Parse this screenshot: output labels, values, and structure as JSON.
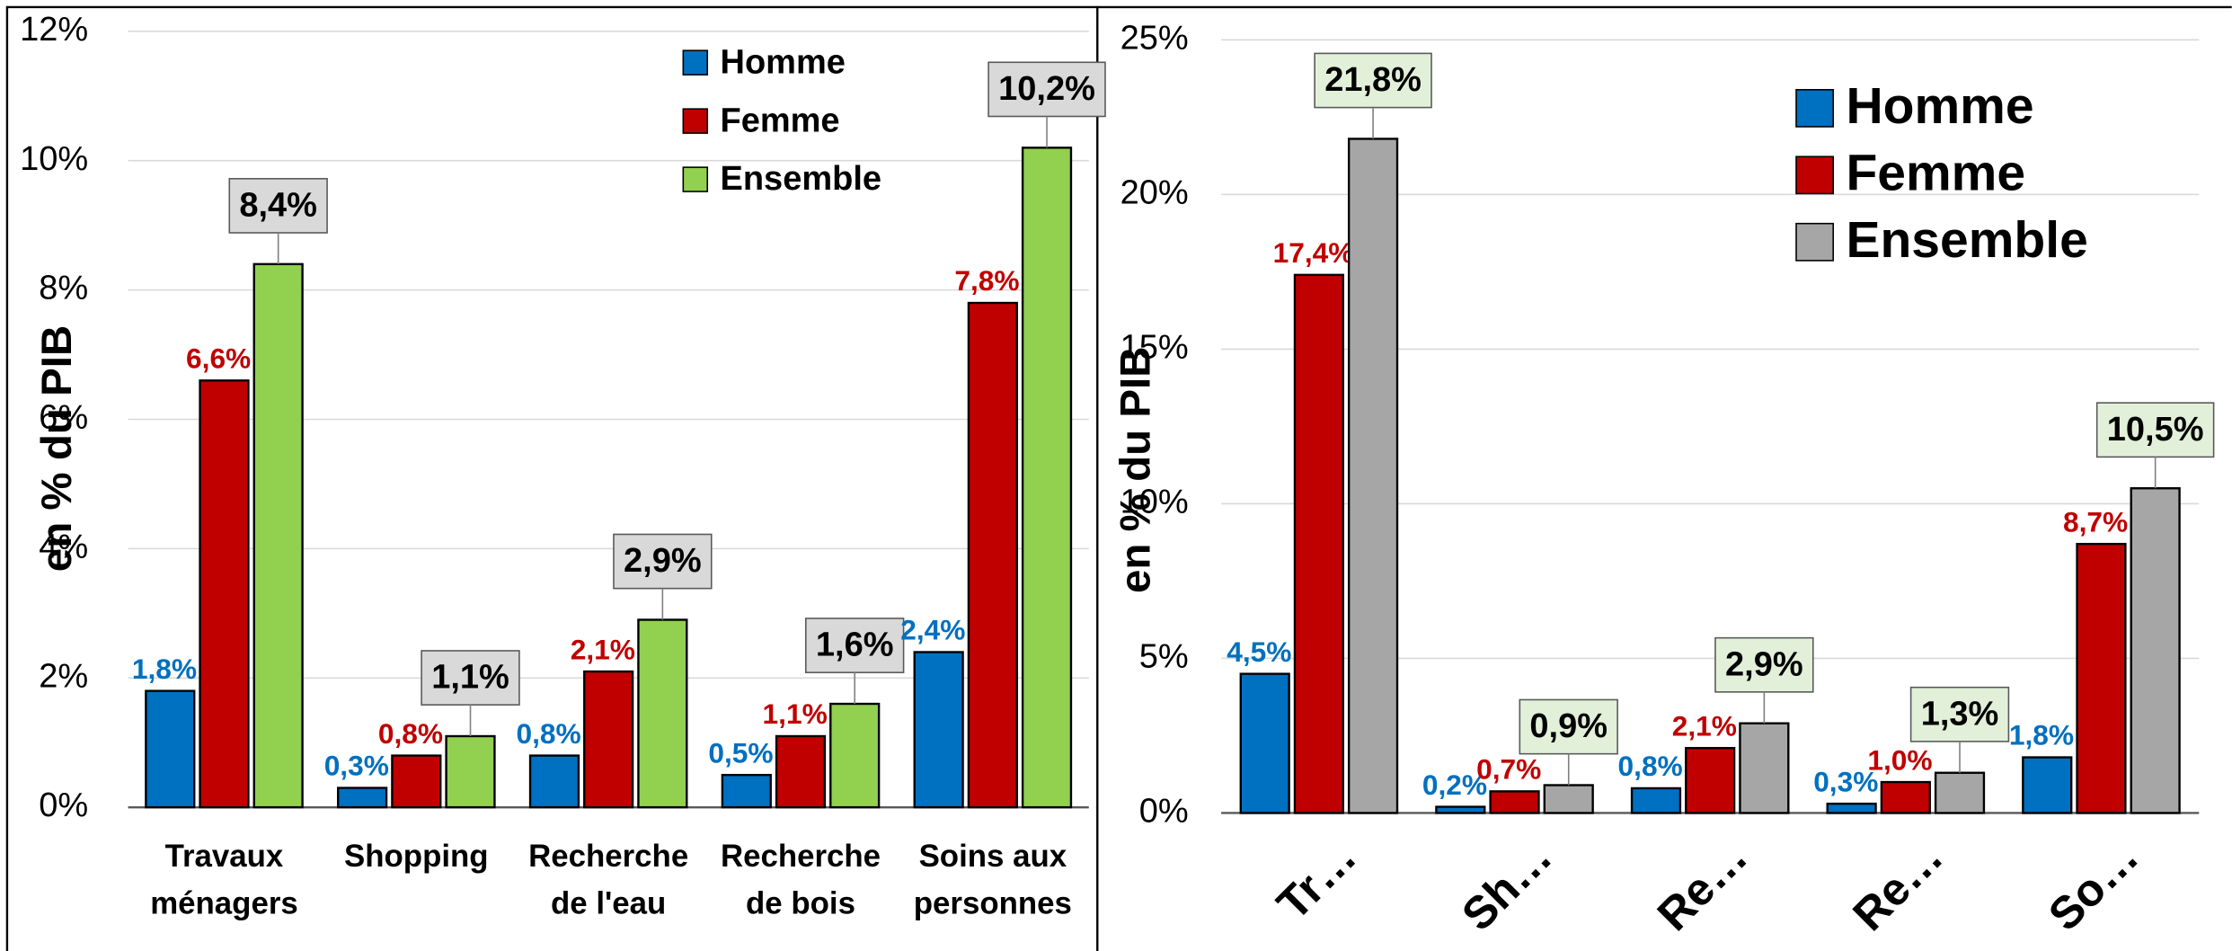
{
  "chart_data": [
    {
      "type": "bar",
      "y_label": "en % du PIB",
      "categories": [
        "Travaux ménagers",
        "Shopping",
        "Recherche de l'eau",
        "Recherche de bois",
        "Soins aux personnes"
      ],
      "series": [
        {
          "name": "Homme",
          "color": "#0070c0",
          "values": [
            1.8,
            0.3,
            0.8,
            0.5,
            2.4
          ],
          "value_labels": [
            "1,8%",
            "0,3%",
            "0,8%",
            "0,5%",
            "2,4%"
          ]
        },
        {
          "name": "Femme",
          "color": "#c00000",
          "values": [
            6.6,
            0.8,
            2.1,
            1.1,
            7.8
          ],
          "value_labels": [
            "6,6%",
            "0,8%",
            "2,1%",
            "1,1%",
            "7,8%"
          ]
        },
        {
          "name": "Ensemble",
          "color": "#92d050",
          "values": [
            8.4,
            1.1,
            2.9,
            1.6,
            10.2
          ],
          "value_labels": [
            "8,4%",
            "1,1%",
            "2,9%",
            "1,6%",
            "10,2%"
          ]
        }
      ],
      "ylim": [
        0,
        12
      ],
      "yticks": [
        {
          "value": 0,
          "label": "0%"
        },
        {
          "value": 2,
          "label": "2%"
        },
        {
          "value": 4,
          "label": "4%"
        },
        {
          "value": 6,
          "label": "6%"
        },
        {
          "value": 8,
          "label": "8%"
        },
        {
          "value": 10,
          "label": "10%"
        },
        {
          "value": 12,
          "label": "12%"
        }
      ],
      "grid": true,
      "legend": "top-right"
    },
    {
      "type": "bar",
      "y_label": "en % du PIB",
      "categories": [
        "Tr…",
        "Sh…",
        "Re…",
        "Re…",
        "So…"
      ],
      "series": [
        {
          "name": "Homme",
          "color": "#0070c0",
          "values": [
            4.5,
            0.2,
            0.8,
            0.3,
            1.8
          ],
          "value_labels": [
            "4,5%",
            "0,2%",
            "0,8%",
            "0,3%",
            "1,8%"
          ]
        },
        {
          "name": "Femme",
          "color": "#c00000",
          "values": [
            17.4,
            0.7,
            2.1,
            1.0,
            8.7
          ],
          "value_labels": [
            "17,4%",
            "0,7%",
            "2,1%",
            "1,0%",
            "8,7%"
          ]
        },
        {
          "name": "Ensemble",
          "color": "#a6a6a6",
          "values": [
            21.8,
            0.9,
            2.9,
            1.3,
            10.5
          ],
          "value_labels": [
            "21,8%",
            "0,9%",
            "2,9%",
            "1,3%",
            "10,5%"
          ]
        }
      ],
      "ylim": [
        0,
        25
      ],
      "yticks": [
        {
          "value": 0,
          "label": "0%"
        },
        {
          "value": 5,
          "label": "5%"
        },
        {
          "value": 10,
          "label": "10%"
        },
        {
          "value": 15,
          "label": "15%"
        },
        {
          "value": 20,
          "label": "20%"
        },
        {
          "value": 25,
          "label": "25%"
        }
      ],
      "grid": true,
      "legend": "top-right"
    }
  ]
}
